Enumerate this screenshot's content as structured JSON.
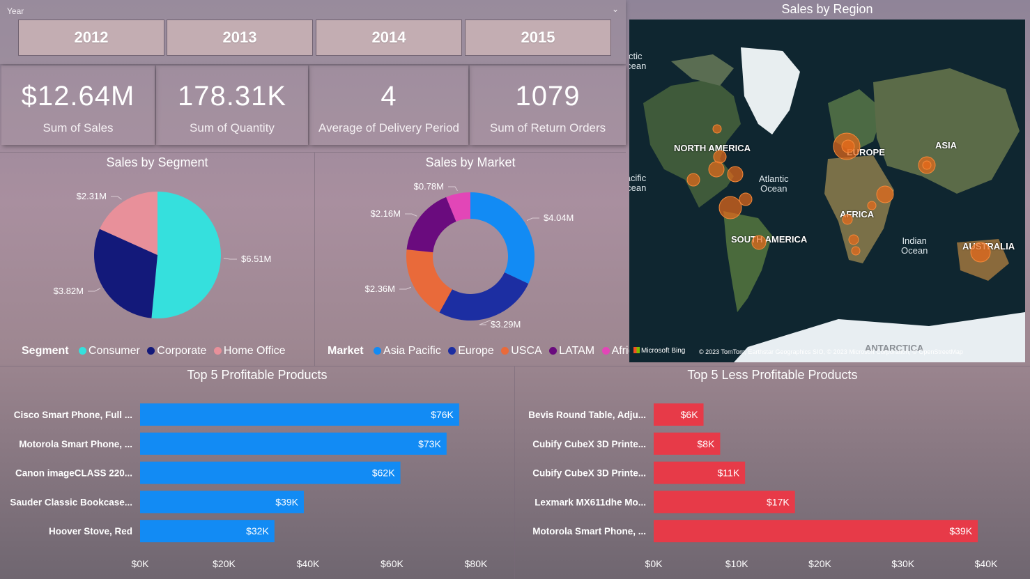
{
  "slicer": {
    "title": "Year",
    "years": [
      "2012",
      "2013",
      "2014",
      "2015"
    ]
  },
  "kpis": [
    {
      "value": "$12.64M",
      "label": "Sum of Sales"
    },
    {
      "value": "178.31K",
      "label": "Sum of Quantity"
    },
    {
      "value": "4",
      "label": "Average of Delivery Period"
    },
    {
      "value": "1079",
      "label": "Sum of Return Orders"
    }
  ],
  "map": {
    "title": "Sales by Region",
    "region_labels": [
      "NORTH AMERICA",
      "EUROPE",
      "ASIA",
      "AFRICA",
      "SOUTH AMERICA",
      "AUSTRALIA",
      "ANTARCTICA"
    ],
    "ocean_labels": [
      "Atlantic\nOcean",
      "Indian\nOcean",
      "Arctic\nOcean",
      "Pacific\nOcean"
    ],
    "bing_label": "Microsoft Bing",
    "copyright": "© 2023 TomTom, Earthstar Geographics SIO, © 2023 Microsoft Corporation, © OpenStreetMap",
    "bubble_color": "#e86a1a"
  },
  "chart_data": [
    {
      "type": "pie",
      "title": "Sales by Segment",
      "legend_title": "Segment",
      "categories": [
        "Consumer",
        "Corporate",
        "Home Office"
      ],
      "values": [
        6.51,
        3.82,
        2.31
      ],
      "value_labels": [
        "$6.51M",
        "$3.82M",
        "$2.31M"
      ],
      "colors": [
        "#35e0dd",
        "#13197a",
        "#e8909a"
      ]
    },
    {
      "type": "pie",
      "subtype": "donut",
      "title": "Sales by Market",
      "legend_title": "Market",
      "categories": [
        "Asia Pacific",
        "Europe",
        "USCA",
        "LATAM",
        "Africa"
      ],
      "values": [
        4.04,
        3.29,
        2.36,
        2.16,
        0.78
      ],
      "value_labels": [
        "$4.04M",
        "$3.29M",
        "$2.36M",
        "$2.16M",
        "$0.78M"
      ],
      "colors": [
        "#128bf4",
        "#1c2ea2",
        "#e96a3a",
        "#6a0b7e",
        "#e246b7"
      ]
    },
    {
      "type": "bar",
      "orientation": "horizontal",
      "title": "Top 5 Profitable Products",
      "categories": [
        "Cisco Smart Phone, Full ...",
        "Motorola Smart Phone, ...",
        "Canon imageCLASS 220...",
        "Sauder Classic Bookcase...",
        "Hoover Stove, Red"
      ],
      "values": [
        76,
        73,
        62,
        39,
        32
      ],
      "value_labels": [
        "$76K",
        "$73K",
        "$62K",
        "$39K",
        "$32K"
      ],
      "xlim": [
        0,
        80
      ],
      "xticks": [
        "$0K",
        "$20K",
        "$40K",
        "$60K",
        "$80K"
      ],
      "color": "#128bf4"
    },
    {
      "type": "bar",
      "orientation": "horizontal",
      "title": "Top 5 Less Profitable Products",
      "categories": [
        "Bevis Round Table, Adju...",
        "Cubify CubeX 3D Printe...",
        "Cubify CubeX 3D Printe...",
        "Lexmark MX611dhe Mo...",
        "Motorola Smart Phone, ..."
      ],
      "values": [
        6,
        8,
        11,
        17,
        39
      ],
      "value_labels": [
        "$6K",
        "$8K",
        "$11K",
        "$17K",
        "$39K"
      ],
      "xlim": [
        0,
        40
      ],
      "xticks": [
        "$0K",
        "$10K",
        "$20K",
        "$30K",
        "$40K"
      ],
      "color": "#e73a48"
    }
  ]
}
